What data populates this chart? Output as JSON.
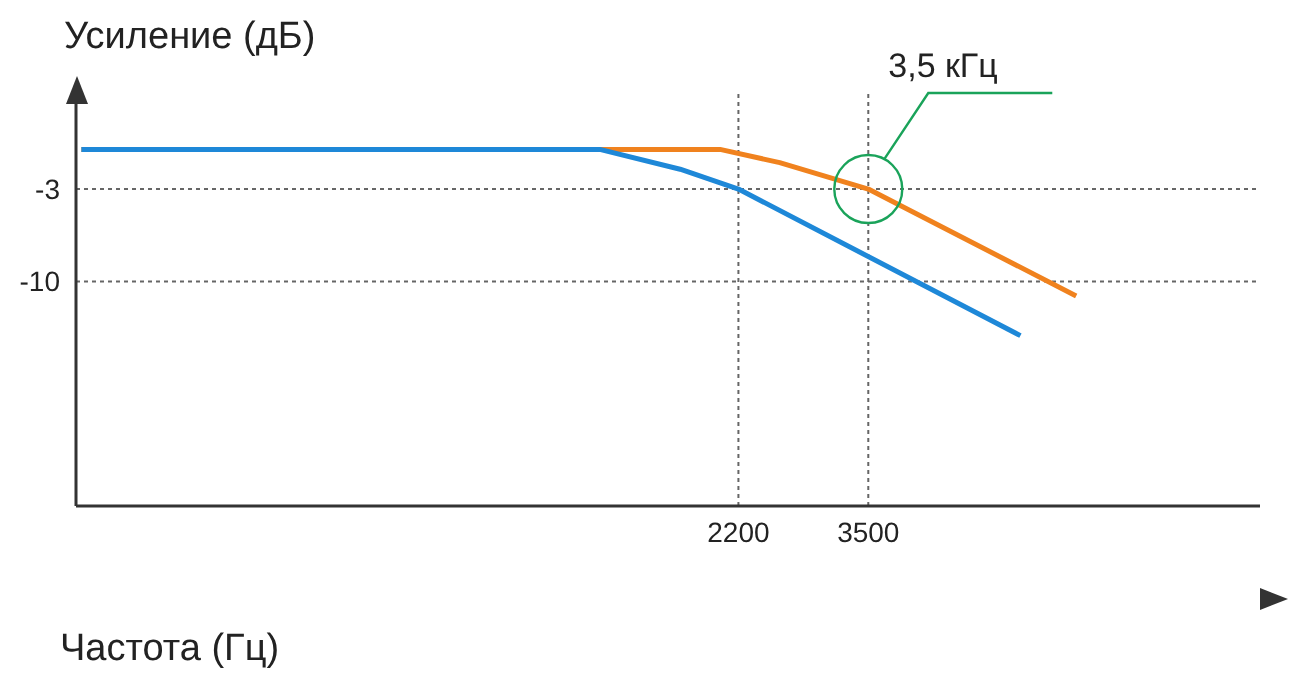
{
  "chart_data": {
    "type": "line",
    "xlabel": "Частота (Гц)",
    "ylabel": "Усиление (дБ)",
    "log": "x",
    "xlim": [
      206,
      14200
    ],
    "xticks": [
      2200,
      3500
    ],
    "ylim": [
      -27,
      4.5
    ],
    "yticks": [
      -3,
      -10
    ],
    "marker": "none",
    "line_style": "solid",
    "series": [
      {
        "color": "#f0821e",
        "x": [
          210,
          2060,
          2550,
          3500,
          7360
        ],
        "values": [
          0,
          0,
          -1,
          -3,
          -11.1
        ]
      },
      {
        "color": "#1e88d8",
        "x": [
          210,
          1340,
          1786,
          2200,
          6030
        ],
        "values": [
          0,
          0,
          -1.5,
          -3,
          -14.1
        ]
      }
    ],
    "ref_lines": [
      {
        "axis": "y",
        "value": -3,
        "line_style": "dotted",
        "color": "#666666"
      },
      {
        "axis": "y",
        "value": -10,
        "line_style": "dotted",
        "color": "#666666"
      },
      {
        "axis": "x",
        "value": 2200,
        "line_style": "dotted",
        "color": "#666666"
      },
      {
        "axis": "x",
        "value": 3500,
        "line_style": "dotted",
        "color": "#666666"
      }
    ],
    "annotations": [
      "3,5 кГц"
    ]
  }
}
